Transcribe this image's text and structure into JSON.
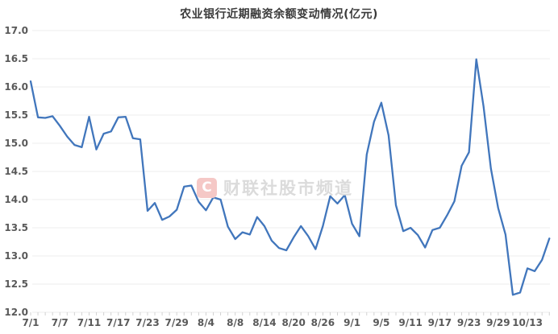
{
  "chart_data": {
    "type": "line",
    "title": "农业银行近期融资余额变动情况(亿元)",
    "xlabel": "",
    "ylabel": "",
    "ylim": [
      12.0,
      17.0
    ],
    "ytick_step": 0.5,
    "ytick_labels": [
      "17.0",
      "16.5",
      "16.0",
      "15.5",
      "15.0",
      "14.5",
      "14.0",
      "13.5",
      "13.0",
      "12.5",
      "12.0"
    ],
    "xtick_label_every": 4,
    "xtick_labels_shown": [
      "7/1",
      "7/7",
      "7/11",
      "7/17",
      "7/23",
      "7/29",
      "8/4",
      "8/8",
      "8/14",
      "8/20",
      "8/26",
      "9/1",
      "9/5",
      "9/11",
      "9/17",
      "9/23",
      "9/29",
      "10/13"
    ],
    "grid": "horizontal",
    "legend": "none",
    "x": [
      "7/1",
      "7/2",
      "7/3",
      "7/4",
      "7/7",
      "7/8",
      "7/9",
      "7/10",
      "7/11",
      "7/14",
      "7/15",
      "7/16",
      "7/17",
      "7/18",
      "7/21",
      "7/22",
      "7/23",
      "7/24",
      "7/25",
      "7/28",
      "7/29",
      "7/30",
      "7/31",
      "8/1",
      "8/4",
      "8/5",
      "8/6",
      "8/7",
      "8/8",
      "8/11",
      "8/12",
      "8/13",
      "8/14",
      "8/15",
      "8/18",
      "8/19",
      "8/20",
      "8/21",
      "8/22",
      "8/25",
      "8/26",
      "8/27",
      "8/28",
      "8/29",
      "9/1",
      "9/2",
      "9/3",
      "9/4",
      "9/5",
      "9/8",
      "9/9",
      "9/10",
      "9/11",
      "9/12",
      "9/15",
      "9/16",
      "9/17",
      "9/18",
      "9/19",
      "9/22",
      "9/23",
      "9/24",
      "9/25",
      "9/26",
      "9/29",
      "9/30",
      "10/9",
      "10/10",
      "10/13",
      "10/14",
      "10/15",
      "10/16"
    ],
    "values": [
      16.1,
      15.46,
      15.45,
      15.48,
      15.31,
      15.12,
      14.97,
      14.93,
      15.47,
      14.89,
      15.17,
      15.21,
      15.46,
      15.47,
      15.09,
      15.07,
      13.8,
      13.94,
      13.64,
      13.7,
      13.82,
      14.23,
      14.25,
      13.96,
      13.81,
      14.04,
      14.0,
      13.52,
      13.3,
      13.42,
      13.38,
      13.69,
      13.53,
      13.27,
      13.14,
      13.1,
      13.33,
      13.53,
      13.35,
      13.12,
      13.53,
      14.06,
      13.93,
      14.08,
      13.57,
      13.35,
      14.8,
      15.38,
      15.72,
      15.14,
      13.9,
      13.44,
      13.5,
      13.37,
      13.15,
      13.46,
      13.5,
      13.72,
      13.97,
      14.6,
      14.84,
      16.49,
      15.65,
      14.55,
      13.85,
      13.38,
      12.31,
      12.35,
      12.78,
      12.73,
      12.93,
      13.31
    ],
    "colors": {
      "line": "#4176bc",
      "grid": "#ececec",
      "tick": "#d2d2d2",
      "axis_labels": "#595959",
      "title": "#3b3b3b"
    }
  },
  "watermark": {
    "logo_letter": "C",
    "text": "财联社股市频道",
    "logo_bg": "#f5c8c6",
    "logo_color": "#ffffff",
    "text_color": "#dbdbdb"
  }
}
